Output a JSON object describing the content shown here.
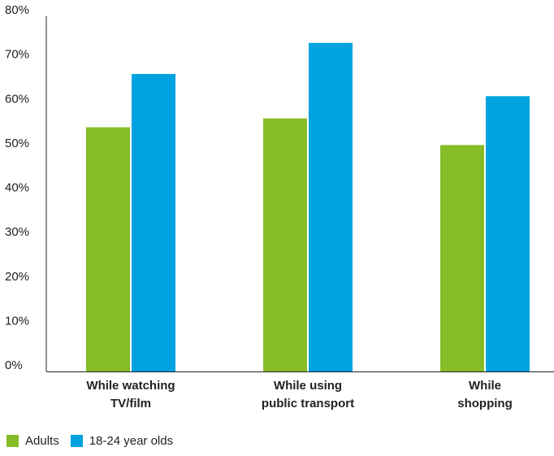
{
  "chart_data": {
    "type": "bar",
    "categories": [
      [
        "While watching",
        "TV/film"
      ],
      [
        "While using",
        "public transport"
      ],
      [
        "While",
        "shopping"
      ]
    ],
    "series": [
      {
        "name": "Adults",
        "color": "#86bc25",
        "values": [
          55,
          57,
          51
        ]
      },
      {
        "name": "18-24 year olds",
        "color": "#00a3e0",
        "values": [
          67,
          74,
          62
        ]
      }
    ],
    "yticks": [
      "0%",
      "10%",
      "20%",
      "30%",
      "40%",
      "50%",
      "60%",
      "70%",
      "80%"
    ],
    "ylim": [
      0,
      80
    ],
    "grid": false,
    "legend_position": "bottom-left"
  }
}
